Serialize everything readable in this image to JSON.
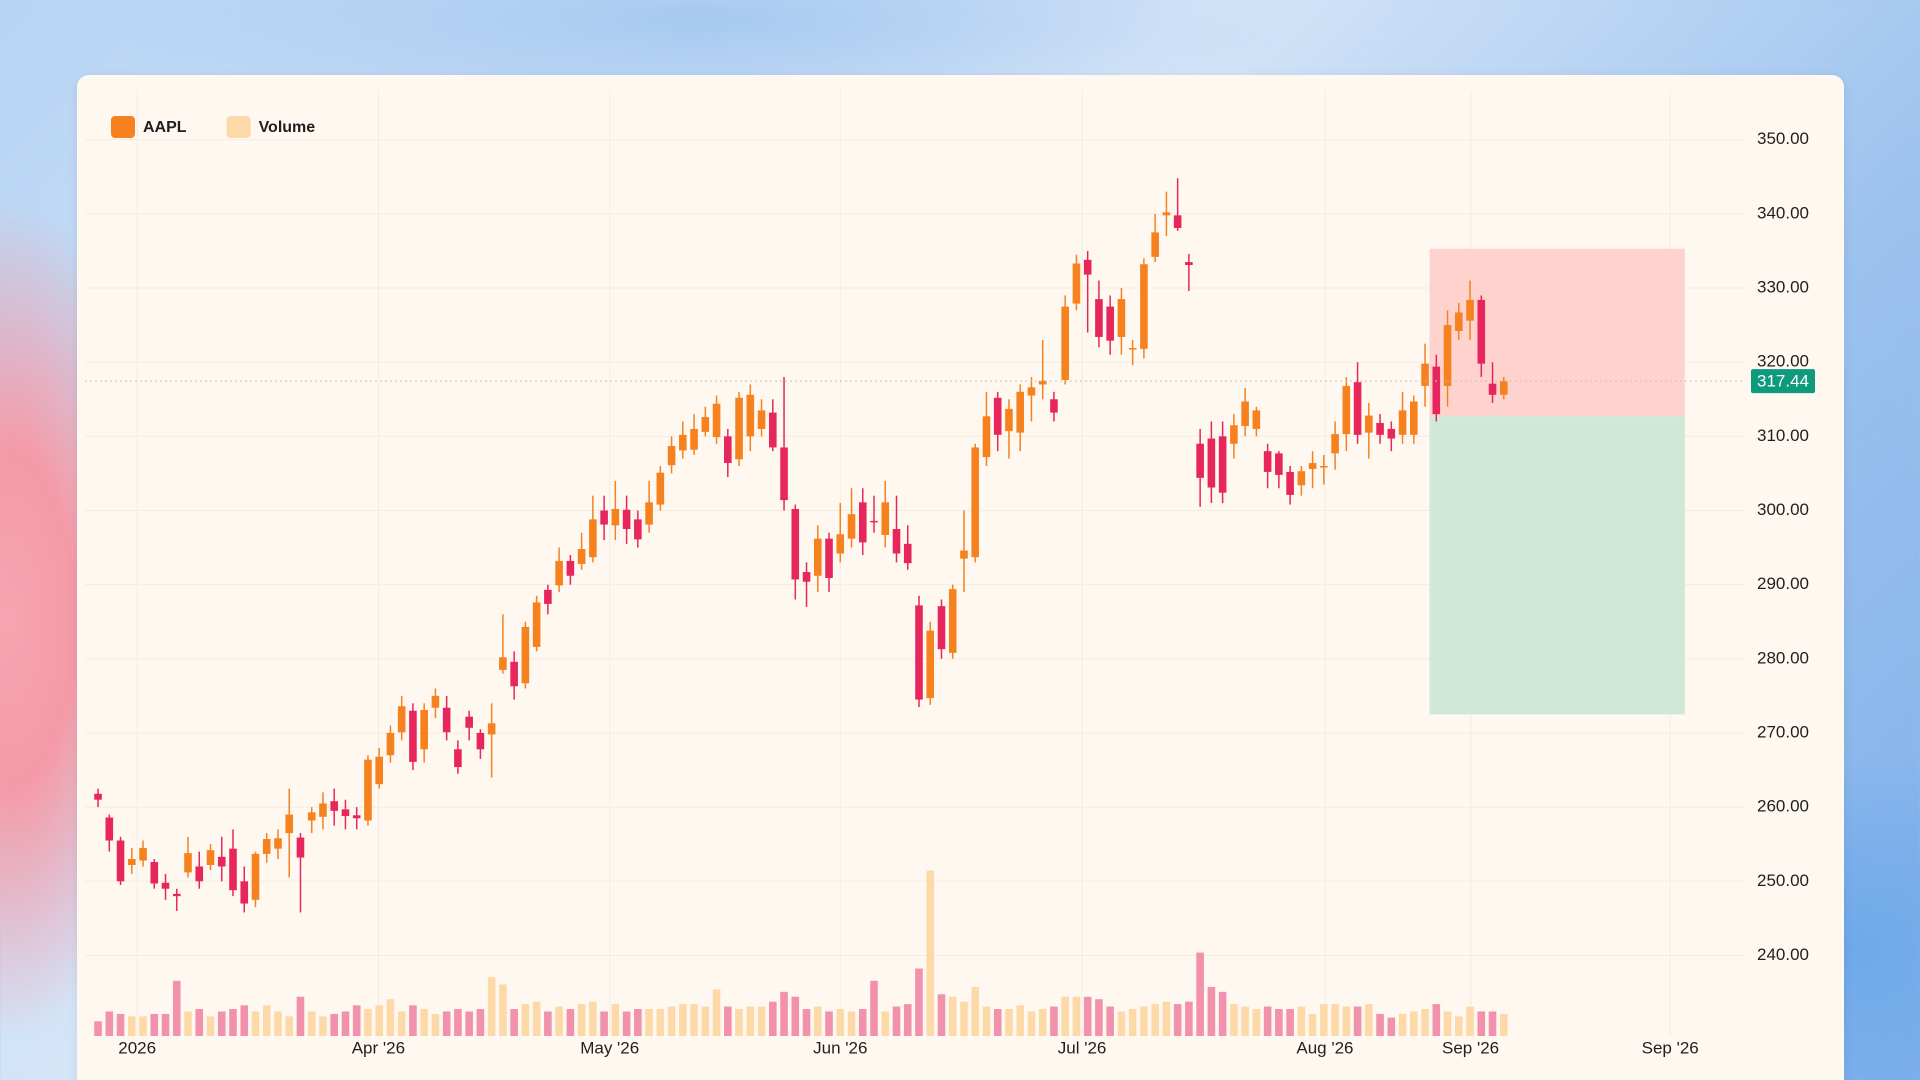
{
  "chart_data": {
    "type": "candlestick",
    "series": [
      {
        "name": "AAPL",
        "type": "candlestick",
        "color": "#f5821f",
        "down_color": "#e8265e",
        "open": [
          261.8,
          258.6,
          255.5,
          252.2,
          252.8,
          252.6,
          249.8,
          248.3,
          251.2,
          252,
          252.2,
          253.3,
          254.4,
          250,
          247.5,
          253.7,
          254.4,
          256.5,
          255.9,
          258.2,
          258.7,
          260.8,
          259.7,
          258.9,
          258.2,
          263.1,
          267,
          270.1,
          273,
          267.8,
          273.4,
          273.4,
          267.8,
          272.2,
          270,
          269.8,
          278.5,
          279.6,
          276.7,
          281.6,
          289.3,
          289.9,
          293.2,
          292.8,
          293.7,
          300,
          298,
          300.1,
          298.8,
          298.1,
          300.8,
          306.1,
          308.1,
          308.2,
          310.6,
          309.9,
          310,
          306.9,
          310,
          311,
          313.2,
          308.5,
          300.2,
          291.7,
          291.2,
          296.2,
          294.2,
          296.2,
          301.1,
          298.6,
          296.7,
          297.5,
          295.5,
          287.2,
          274.7,
          287.1,
          280.8,
          293.5,
          293.7,
          307.2,
          315.2,
          310.7,
          310.5,
          315.5,
          317,
          315,
          317.6,
          327.9,
          333.8,
          328.5,
          327.5,
          323.4,
          321.7,
          321.8,
          334.2,
          339.8,
          339.8,
          333.5,
          309,
          309.7,
          310,
          309,
          311.4,
          311,
          308,
          307.7,
          305.2,
          303.4,
          305.6,
          305.8,
          307.7,
          310.3,
          317.3,
          310.5,
          311.8,
          311,
          310.2,
          310.2,
          316.8,
          319.4,
          316.8,
          324.2,
          325.6,
          328.4,
          317.1,
          315.6
        ],
        "high": [
          262.5,
          259,
          256,
          254.5,
          255.5,
          253,
          251,
          249,
          256,
          254,
          255,
          256,
          257,
          252,
          254,
          256.5,
          257,
          262.5,
          256.5,
          260,
          262,
          262.5,
          261,
          260,
          267,
          268,
          271,
          275,
          274,
          274,
          276,
          275,
          269,
          273,
          270.5,
          274,
          286,
          281,
          285,
          288.5,
          290,
          295,
          294,
          297,
          302,
          302,
          304,
          302,
          300,
          304,
          306,
          310,
          312,
          313,
          314,
          315.5,
          311,
          316,
          317,
          315,
          315,
          318,
          300.8,
          293,
          298,
          297,
          301,
          303,
          303,
          302,
          304,
          302,
          298,
          288.5,
          285,
          288,
          290,
          300,
          309,
          316,
          316,
          315,
          317,
          318,
          323,
          316,
          329,
          334.5,
          335,
          331,
          329,
          330,
          323,
          334,
          340,
          343,
          344.8,
          334.6,
          311,
          312,
          312,
          313,
          316.5,
          314,
          309,
          308,
          306,
          306,
          308,
          307.5,
          312,
          318,
          320,
          314.5,
          313,
          312,
          316,
          315.5,
          322.5,
          321,
          327,
          328,
          331,
          329,
          320,
          318
        ],
        "low": [
          260,
          254,
          249.5,
          251,
          252,
          249,
          247.5,
          246,
          250.5,
          249,
          251.5,
          250,
          248,
          245.8,
          246.5,
          252.5,
          253,
          250.5,
          245.8,
          256.5,
          257,
          257.5,
          257,
          257,
          257.5,
          262.5,
          266,
          269,
          265,
          266,
          272,
          269,
          264.5,
          269,
          266.5,
          264,
          278,
          274.5,
          276,
          281,
          286,
          289,
          290,
          292,
          293,
          296,
          296,
          295.5,
          295,
          297,
          300,
          305,
          307,
          307.5,
          310,
          309,
          304.5,
          306,
          308,
          310,
          308,
          300,
          288,
          287,
          289,
          289,
          293,
          295,
          294,
          297,
          295,
          293,
          292,
          273.5,
          273.8,
          280,
          280,
          289,
          293,
          306,
          308,
          307,
          308,
          312,
          315,
          312,
          317,
          327,
          324,
          322,
          321,
          321,
          319.6,
          320.5,
          333.5,
          337,
          337.7,
          329.6,
          300.5,
          301,
          301,
          307,
          310,
          310,
          303,
          303,
          300.8,
          302,
          303,
          303.5,
          305.5,
          308,
          309,
          307,
          309,
          308,
          309,
          309,
          314,
          312,
          314,
          323,
          323,
          318,
          314.5,
          315
        ],
        "close": [
          261,
          255.5,
          250,
          253,
          254.5,
          249.7,
          249,
          248,
          253.8,
          250,
          254.2,
          252,
          248.8,
          247,
          253.7,
          255.7,
          255.8,
          259,
          253.2,
          259.3,
          260.5,
          259.5,
          258.8,
          258.5,
          266.4,
          266.8,
          270,
          273.6,
          266.1,
          273.1,
          275,
          270.1,
          265.4,
          270.7,
          267.8,
          271.3,
          280.2,
          276.3,
          284.3,
          287.6,
          287.4,
          293.2,
          291.2,
          294.8,
          298.8,
          298.1,
          300.2,
          297.5,
          296.1,
          301.1,
          305.1,
          308.7,
          310.2,
          311,
          312.6,
          314.4,
          306.4,
          315.2,
          315.6,
          313.5,
          308.5,
          301.4,
          290.7,
          290.4,
          296.2,
          290.9,
          296.8,
          299.5,
          295.7,
          298.4,
          301.1,
          294.2,
          292.9,
          274.5,
          283.8,
          281.3,
          289.4,
          294.6,
          308.5,
          312.7,
          310.2,
          313.7,
          316,
          316.6,
          317.5,
          313.2,
          327.5,
          333.3,
          331.8,
          323.4,
          322.9,
          328.5,
          321.9,
          333.2,
          337.5,
          340.2,
          338.1,
          333.1,
          304.4,
          303.1,
          302.4,
          311.5,
          314.7,
          313.5,
          305.2,
          304.8,
          302.1,
          305.3,
          306.4,
          306,
          310.3,
          316.8,
          310.2,
          312.8,
          310.2,
          309.7,
          313.5,
          314.7,
          319.8,
          313,
          325,
          326.7,
          328.4,
          319.8,
          315.6,
          317.44
        ]
      },
      {
        "name": "Volume",
        "type": "bar",
        "color": "#fdd9a8",
        "down_color": "#f291ab",
        "values": [
          12,
          20,
          18,
          16,
          16,
          18,
          18,
          45,
          20,
          22,
          16,
          20,
          22,
          25,
          20,
          25,
          20,
          16,
          32,
          20,
          16,
          18,
          20,
          25,
          22,
          25,
          30,
          20,
          25,
          22,
          18,
          20,
          22,
          20,
          22,
          48,
          42,
          22,
          26,
          28,
          20,
          24,
          22,
          26,
          28,
          20,
          26,
          20,
          22,
          22,
          22,
          24,
          26,
          26,
          24,
          38,
          24,
          22,
          24,
          24,
          28,
          36,
          32,
          22,
          24,
          20,
          22,
          20,
          22,
          45,
          20,
          24,
          26,
          55,
          135,
          34,
          32,
          28,
          40,
          24,
          22,
          22,
          25,
          20,
          22,
          24,
          32,
          32,
          32,
          30,
          24,
          20,
          22,
          24,
          26,
          28,
          26,
          28,
          68,
          40,
          36,
          26,
          24,
          22,
          24,
          22,
          22,
          24,
          18,
          26,
          26,
          24,
          24,
          26,
          18,
          15,
          18,
          20,
          22,
          26,
          20,
          16,
          24,
          20,
          20,
          18
        ]
      }
    ],
    "ylim": [
      228.6,
      356.7
    ],
    "yticks": [
      {
        "value": 240,
        "label": "240.00"
      },
      {
        "value": 250,
        "label": "250.00"
      },
      {
        "value": 260,
        "label": "260.00"
      },
      {
        "value": 270,
        "label": "270.00"
      },
      {
        "value": 280,
        "label": "280.00"
      },
      {
        "value": 290,
        "label": "290.00"
      },
      {
        "value": 300,
        "label": "300.00"
      },
      {
        "value": 310,
        "label": "310.00"
      },
      {
        "value": 320,
        "label": "320.00"
      },
      {
        "value": 330,
        "label": "330.00"
      },
      {
        "value": 340,
        "label": "340.00"
      },
      {
        "value": 350,
        "label": "350.00"
      }
    ],
    "volume_ylim": [
      0,
      150
    ],
    "xlim": [
      -1.16,
      146.45
    ],
    "xticks": [
      {
        "value": 3.48,
        "label": "2026"
      },
      {
        "value": 24.93,
        "label": "Apr '26"
      },
      {
        "value": 45.5,
        "label": "May '26"
      },
      {
        "value": 66.0,
        "label": "Jun '26"
      },
      {
        "value": 87.5,
        "label": "Jul '26"
      },
      {
        "value": 109.1,
        "label": "Aug '26"
      },
      {
        "value": 122.05,
        "label": "Sep '26"
      },
      {
        "value": 139.8,
        "label": "Sep '26"
      }
    ],
    "grid": true,
    "last_price_color": "#0e9a7c",
    "position": {
      "entry": 312.7,
      "stop": 335.3,
      "target": 272.5,
      "start": 118.4,
      "end": 141.1,
      "stop_color": "#ffd3cd",
      "target_color": "#cfe8d7"
    }
  }
}
